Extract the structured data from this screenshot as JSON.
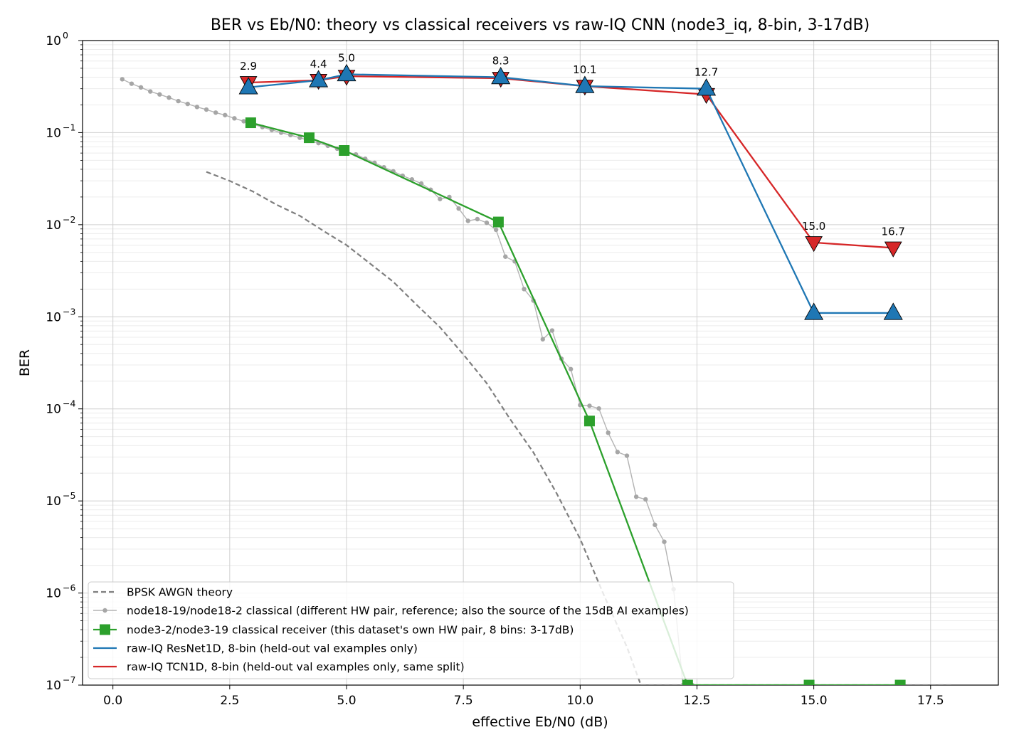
{
  "chart_data": {
    "type": "line",
    "title": "BER vs Eb/N0: theory vs classical receivers vs raw-IQ CNN (node3_iq, 8-bin, 3-17dB)",
    "xlabel": "effective Eb/N0 (dB)",
    "ylabel": "BER",
    "xlim": [
      -0.65,
      18.95
    ],
    "ylim": [
      1e-07,
      1
    ],
    "yscale": "log",
    "grid": true,
    "legend_placement": "lower-left",
    "x_ticks": [
      0.0,
      2.5,
      5.0,
      7.5,
      10.0,
      12.5,
      15.0,
      17.5
    ],
    "x_tick_labels": [
      "0.0",
      "2.5",
      "5.0",
      "7.5",
      "10.0",
      "12.5",
      "15.0",
      "17.5"
    ],
    "y_ticks": [
      {
        "value": 1,
        "base": "10",
        "exp": "0"
      },
      {
        "value": 0.1,
        "base": "10",
        "exp": "−1"
      },
      {
        "value": 0.01,
        "base": "10",
        "exp": "−2"
      },
      {
        "value": 0.001,
        "base": "10",
        "exp": "−3"
      },
      {
        "value": 0.0001,
        "base": "10",
        "exp": "−4"
      },
      {
        "value": 1e-05,
        "base": "10",
        "exp": "−5"
      },
      {
        "value": 1e-06,
        "base": "10",
        "exp": "−6"
      },
      {
        "value": 1e-07,
        "base": "10",
        "exp": "−7"
      }
    ],
    "series": [
      {
        "name": "BPSK AWGN theory",
        "color": "#7f7f7f",
        "style": "dashed",
        "marker": "none",
        "x": [
          2.0,
          2.5,
          3.0,
          3.5,
          4.0,
          4.5,
          5.0,
          5.5,
          6.0,
          6.5,
          7.0,
          7.5,
          8.0,
          8.5,
          9.0,
          9.5,
          10.0,
          10.5,
          11.0,
          11.3
        ],
        "y": [
          0.0375,
          0.0299,
          0.0229,
          0.0165,
          0.0125,
          0.0086,
          0.006,
          0.0038,
          0.0024,
          0.00135,
          0.00077,
          0.00039,
          0.00019,
          7.74e-05,
          3.36e-05,
          1.2e-05,
          3.87e-06,
          9.7e-07,
          2.6e-07,
          1e-07
        ],
        "x_floor": [
          11.3,
          18.0
        ],
        "y_floor": [
          1e-07,
          1e-07
        ]
      },
      {
        "name": "node18-19/node18-2 classical (different HW pair, reference; also the source of the 15dB AI examples)",
        "color": "#9e9e9e",
        "style": "solid",
        "marker": "dot",
        "x": [
          0.2,
          0.4,
          0.6,
          0.8,
          1.0,
          1.2,
          1.4,
          1.6,
          1.8,
          2.0,
          2.2,
          2.4,
          2.6,
          2.8,
          3.0,
          3.2,
          3.4,
          3.6,
          3.8,
          4.0,
          4.2,
          4.4,
          4.6,
          4.8,
          5.0,
          5.2,
          5.4,
          5.6,
          5.8,
          6.0,
          6.2,
          6.4,
          6.6,
          6.8,
          7.0,
          7.2,
          7.4,
          7.6,
          7.8,
          8.0,
          8.2,
          8.4,
          8.6,
          8.8,
          9.0,
          9.2,
          9.4,
          9.6,
          9.8,
          10.0,
          10.2,
          10.4,
          10.6,
          10.8,
          11.0,
          11.2,
          11.4,
          11.6,
          11.8,
          12.0,
          12.2,
          12.4
        ],
        "y": [
          0.38,
          0.34,
          0.31,
          0.28,
          0.26,
          0.24,
          0.22,
          0.205,
          0.19,
          0.178,
          0.165,
          0.155,
          0.143,
          0.133,
          0.123,
          0.115,
          0.107,
          0.1,
          0.094,
          0.088,
          0.082,
          0.077,
          0.072,
          0.067,
          0.062,
          0.058,
          0.052,
          0.047,
          0.042,
          0.038,
          0.034,
          0.031,
          0.028,
          0.024,
          0.019,
          0.02,
          0.015,
          0.011,
          0.0115,
          0.0105,
          0.0088,
          0.0045,
          0.004,
          0.002,
          0.0015,
          0.00057,
          0.00071,
          0.00035,
          0.00027,
          0.00011,
          0.000108,
          0.000101,
          5.5e-05,
          3.4e-05,
          3.1e-05,
          1.11e-05,
          1.04e-05,
          5.5e-06,
          3.6e-06,
          1.1e-06,
          1e-07,
          1e-07
        ]
      },
      {
        "name": "node3-2/node3-19 classical receiver (this dataset's own HW pair, 8 bins: 3-17dB)",
        "color": "#2ca02c",
        "style": "solid",
        "marker": "square",
        "x": [
          2.95,
          4.2,
          4.95,
          8.25,
          10.2,
          12.3,
          14.9,
          16.85
        ],
        "y": [
          0.128,
          0.088,
          0.064,
          0.0107,
          7.38e-05,
          1e-07,
          1e-07,
          1e-07
        ]
      },
      {
        "name": "raw-IQ ResNet1D, 8-bin (held-out val examples only)",
        "color": "#1f77b4",
        "style": "solid",
        "marker": "triangle-up",
        "x": [
          2.9,
          4.4,
          5.0,
          8.3,
          10.1,
          12.7,
          15.0,
          16.7
        ],
        "y": [
          0.31,
          0.37,
          0.43,
          0.4,
          0.32,
          0.3,
          0.0011,
          0.0011
        ],
        "point_labels": [
          "2.9",
          "4.4",
          "5.0",
          "8.3",
          "10.1",
          "12.7",
          "15.0",
          "16.7"
        ]
      },
      {
        "name": "raw-IQ TCN1D, 8-bin (held-out val examples only, same split)",
        "color": "#d62728",
        "style": "solid",
        "marker": "triangle-down",
        "x": [
          2.9,
          4.4,
          5.0,
          8.3,
          10.1,
          12.7,
          15.0,
          16.7
        ],
        "y": [
          0.35,
          0.37,
          0.41,
          0.39,
          0.32,
          0.26,
          0.0064,
          0.0056
        ]
      }
    ]
  }
}
